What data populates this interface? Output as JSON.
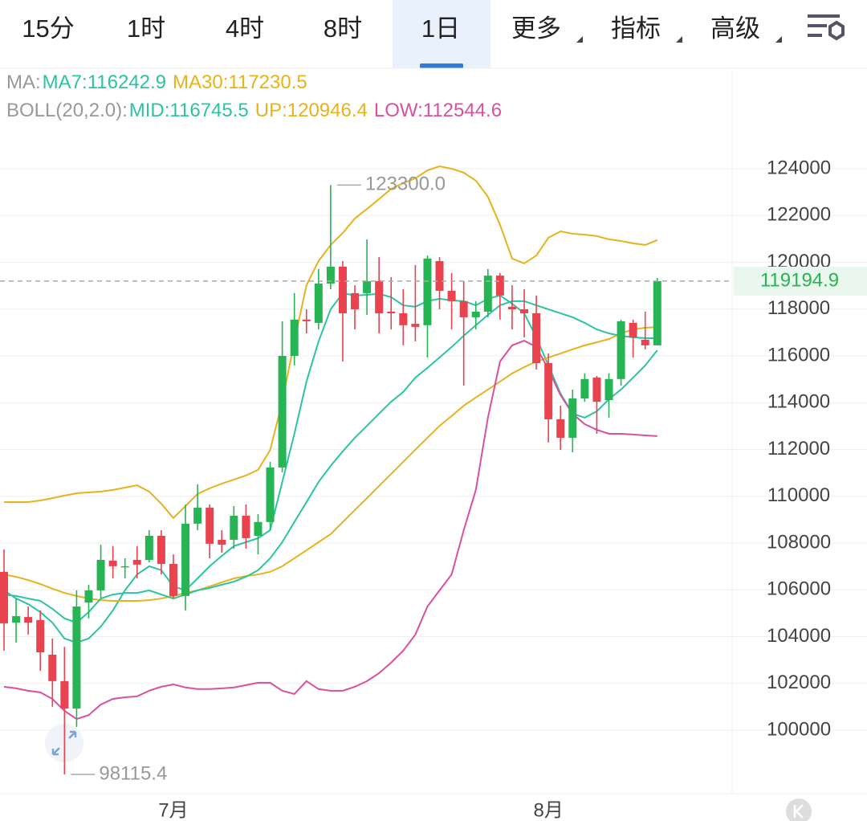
{
  "tabs": [
    "15分",
    "1时",
    "4时",
    "8时",
    "1日",
    "更多",
    "指标",
    "高级"
  ],
  "chart_data": {
    "type": "candlestick",
    "categories": [
      null,
      null,
      null,
      null,
      null,
      null,
      null,
      null,
      null,
      null,
      null,
      null,
      null,
      null,
      "7月",
      null,
      null,
      null,
      null,
      null,
      null,
      null,
      null,
      null,
      null,
      null,
      null,
      null,
      null,
      null,
      null,
      null,
      null,
      null,
      null,
      null,
      null,
      null,
      null,
      null,
      null,
      null,
      null,
      null,
      null,
      "8月",
      null,
      null,
      null,
      null,
      null,
      null,
      null,
      null,
      null
    ],
    "open": [
      106770,
      104600,
      104840,
      104710,
      103230,
      102100,
      100930,
      105460,
      105980,
      107250,
      106970,
      107280,
      107280,
      108310,
      107110,
      105740,
      108830,
      109510,
      108140,
      108140,
      109170,
      108310,
      108900,
      111230,
      116000,
      117550,
      117410,
      119090,
      119810,
      118680,
      118680,
      119190,
      117890,
      117820,
      117370,
      117310,
      120050,
      118780,
      118340,
      117650,
      117890,
      119430,
      118100,
      117990,
      117820,
      115690,
      113290,
      112500,
      114180,
      115070,
      114110,
      115010,
      117410,
      116690,
      116450
    ],
    "high": [
      107730,
      105630,
      105290,
      105120,
      103920,
      103570,
      105980,
      106220,
      107930,
      107870,
      107350,
      107870,
      108550,
      108550,
      107520,
      109650,
      110510,
      109650,
      108550,
      109580,
      109650,
      109240,
      111470,
      117480,
      118680,
      117990,
      119710,
      123300,
      120050,
      119020,
      120980,
      120220,
      119370,
      118850,
      119880,
      120290,
      120220,
      119540,
      119190,
      118340,
      119710,
      119540,
      119020,
      118850,
      118580,
      116100,
      113870,
      114560,
      115250,
      115140,
      115250,
      117550,
      117550,
      117890,
      119330
    ],
    "low": [
      103400,
      103750,
      104090,
      102540,
      101000,
      98115.4,
      100140,
      104780,
      105630,
      106490,
      106490,
      106490,
      107180,
      106660,
      105630,
      105120,
      108550,
      107350,
      107590,
      107760,
      107760,
      107520,
      108550,
      111020,
      115590,
      116960,
      117130,
      118850,
      115760,
      117130,
      117750,
      116960,
      117130,
      116450,
      116620,
      115930,
      117990,
      117130,
      114730,
      117130,
      117650,
      117550,
      117130,
      116790,
      115420,
      112300,
      111980,
      111880,
      114040,
      112670,
      113360,
      114730,
      115930,
      116280,
      116450
    ],
    "close": [
      104570,
      104880,
      104600,
      103330,
      102100,
      100930,
      105290,
      105980,
      107280,
      107010,
      107010,
      107080,
      108310,
      107110,
      105740,
      108830,
      109510,
      107970,
      107930,
      109170,
      108210,
      108900,
      111230,
      116000,
      117550,
      117480,
      119090,
      119810,
      117820,
      117990,
      119190,
      117820,
      117820,
      117310,
      117240,
      120160,
      118780,
      118340,
      117650,
      117890,
      119430,
      118580,
      117990,
      117820,
      115690,
      113290,
      112500,
      114180,
      115010,
      114040,
      115010,
      117480,
      116790,
      116450,
      119194.9
    ],
    "up_color": "#27b454",
    "down_color": "#e8434f",
    "indicators": [
      {
        "label": "MA:",
        "series": [
          {
            "name": "MA7:116242.9",
            "color": "#2bc4a2",
            "values": [
              105980,
              105630,
              105390,
              105050,
              104600,
              103920,
              103750,
              103920,
              104430,
              105120,
              105980,
              106660,
              107010,
              106840,
              106150,
              105980,
              106490,
              107010,
              107450,
              107870,
              108040,
              108210,
              108550,
              110610,
              112670,
              114900,
              116620,
              117990,
              118680,
              118580,
              118610,
              118650,
              118510,
              118160,
              118100,
              118340,
              118440,
              118370,
              118340,
              118160,
              118440,
              118580,
              118230,
              117820,
              116790,
              115590,
              114390,
              113530,
              113360,
              113630,
              114150,
              114560,
              115070,
              115590,
              116240
            ]
          },
          {
            "name": "MA30:117230.5",
            "color": "#e8b21a",
            "values": [
              106660,
              106560,
              106420,
              106250,
              106050,
              105870,
              105740,
              105630,
              105560,
              105530,
              105530,
              105530,
              105560,
              105630,
              105740,
              105870,
              105980,
              106150,
              106320,
              106490,
              106590,
              106660,
              106770,
              107010,
              107350,
              107690,
              108040,
              108380,
              108900,
              109410,
              109920,
              110440,
              110950,
              111470,
              111990,
              112500,
              113010,
              113430,
              113870,
              114220,
              114560,
              114900,
              115250,
              115520,
              115760,
              115930,
              116100,
              116280,
              116450,
              116580,
              116720,
              116960,
              117130,
              117200,
              117230
            ]
          }
        ]
      },
      {
        "label": "BOLL(20,2.0):",
        "series": [
          {
            "name": "MID:116745.5",
            "color": "#2bc4a2",
            "values": [
              105800,
              105740,
              105630,
              105530,
              105190,
              104780,
              104600,
              105050,
              105630,
              105800,
              105870,
              105870,
              105980,
              105800,
              105630,
              105800,
              105980,
              106080,
              106220,
              106350,
              106560,
              106840,
              107350,
              108040,
              108900,
              109750,
              110610,
              111300,
              111920,
              112500,
              113010,
              113530,
              114040,
              114460,
              115070,
              115490,
              115930,
              116380,
              116860,
              117310,
              117750,
              118160,
              118340,
              118340,
              118160,
              117990,
              117820,
              117650,
              117410,
              117130,
              116960,
              116860,
              116790,
              116760,
              116750
            ]
          },
          {
            "name": "UP:120946.4",
            "color": "#e8b21a",
            "values": [
              109750,
              109750,
              109750,
              109820,
              109920,
              110030,
              110130,
              110170,
              110200,
              110270,
              110370,
              110470,
              110200,
              109680,
              109070,
              109580,
              110100,
              110340,
              110540,
              110710,
              110890,
              111130,
              111980,
              114040,
              116620,
              119020,
              120050,
              120740,
              121250,
              121870,
              122280,
              122700,
              123140,
              123380,
              123590,
              123930,
              124100,
              124000,
              123830,
              123490,
              122800,
              121600,
              120160,
              119950,
              120290,
              121050,
              121320,
              121220,
              121180,
              121120,
              120980,
              120910,
              120810,
              120740,
              120950
            ]
          },
          {
            "name": "LOW:112544.6",
            "color": "#d8509f",
            "values": [
              101860,
              101790,
              101690,
              101620,
              101340,
              100830,
              100480,
              100650,
              101100,
              101340,
              101410,
              101450,
              101690,
              101860,
              101960,
              101830,
              101760,
              101760,
              101790,
              101830,
              101930,
              102030,
              102030,
              101690,
              101550,
              102100,
              101760,
              101690,
              101690,
              101860,
              102100,
              102440,
              102890,
              103400,
              104090,
              105290,
              105980,
              106660,
              108550,
              110270,
              113360,
              115760,
              116450,
              116650,
              116380,
              115420,
              114320,
              113530,
              113080,
              112840,
              112670,
              112670,
              112640,
              112600,
              112570
            ]
          }
        ]
      }
    ],
    "annotations": [
      {
        "value": 123300,
        "label": "123300.0"
      },
      {
        "value": 98115.4
      }
    ],
    "ylim": [
      97290,
      128290
    ],
    "yticks": [
      100000,
      102000,
      104000,
      106000,
      108000,
      110000,
      112000,
      114000,
      116000,
      118000,
      120000,
      122000,
      124000
    ],
    "grid": true
  }
}
